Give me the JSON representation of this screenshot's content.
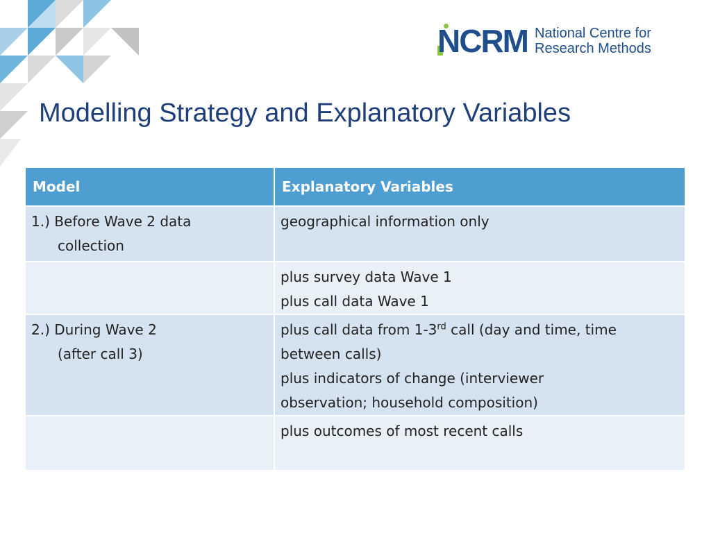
{
  "logo": {
    "mark_prefix": "N",
    "mark_rest": "CRM",
    "name_line1": "National Centre for",
    "name_line2": "Research Methods"
  },
  "slide": {
    "title": "Modelling Strategy and Explanatory Variables"
  },
  "table": {
    "headers": [
      "Model",
      "Explanatory Variables"
    ],
    "rows": [
      {
        "model_line1": "1.) Before Wave 2 data",
        "model_line2": "collection",
        "variables": [
          "geographical information only"
        ]
      },
      {
        "model_line1": "",
        "model_line2": "",
        "variables": [
          "plus survey data Wave 1",
          "plus call data Wave 1"
        ]
      },
      {
        "model_line1": "2.) During Wave 2",
        "model_line2": "(after call 3)",
        "variables_special": {
          "call_prefix": "plus call data from 1-3",
          "call_sup": "rd",
          "call_suffix": " call (day and time, time",
          "call_cont": "between calls)",
          "change_line1": "plus indicators of change (interviewer",
          "change_line2": "observation; household composition)"
        }
      },
      {
        "model_line1": "",
        "model_line2": "",
        "variables": [
          "plus outcomes of most recent calls"
        ]
      }
    ]
  },
  "colors": {
    "header_bg": "#4f9ed2",
    "row_dark": "#d5e2ef",
    "row_light": "#eaf0f7",
    "title": "#1f3f7a",
    "logo_blue": "#1f4e8a",
    "logo_green": "#8cc63f"
  }
}
